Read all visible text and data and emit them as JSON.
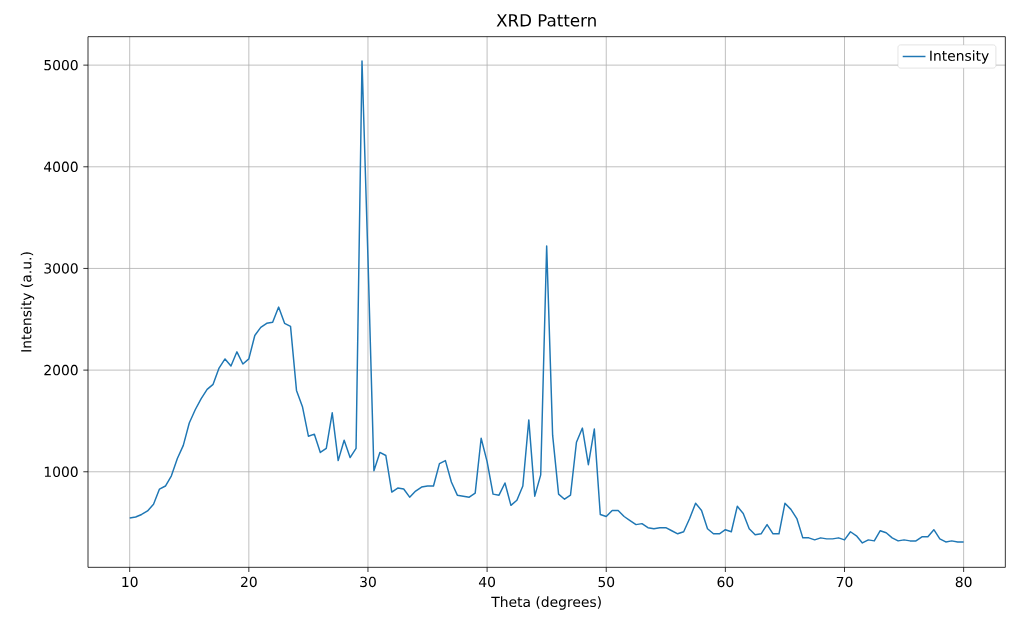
{
  "chart_data": {
    "type": "line",
    "title": "XRD Pattern",
    "xlabel": "Theta (degrees)",
    "ylabel": "Intensity (a.u.)",
    "x": [
      10,
      10.5,
      11,
      11.5,
      12,
      12.5,
      13,
      13.5,
      14,
      14.5,
      15,
      15.5,
      16,
      16.5,
      17,
      17.5,
      18,
      18.5,
      19,
      19.5,
      20,
      20.5,
      21,
      21.5,
      22,
      22.5,
      23,
      23.5,
      24,
      24.5,
      25,
      25.5,
      26,
      26.5,
      27,
      27.5,
      28,
      28.5,
      29,
      29.5,
      30,
      30.5,
      31,
      31.5,
      32,
      32.5,
      33,
      33.5,
      34,
      34.5,
      35,
      35.5,
      36,
      36.5,
      37,
      37.5,
      38,
      38.5,
      39,
      39.5,
      40,
      40.5,
      41,
      41.5,
      42,
      42.5,
      43,
      43.5,
      44,
      44.5,
      45,
      45.5,
      46,
      46.5,
      47,
      47.5,
      48,
      48.5,
      49,
      49.5,
      50,
      50.5,
      51,
      51.5,
      52,
      52.5,
      53,
      53.5,
      54,
      54.5,
      55,
      55.5,
      56,
      56.5,
      57,
      57.5,
      58,
      58.5,
      59,
      59.5,
      60,
      60.5,
      61,
      61.5,
      62,
      62.5,
      63,
      63.5,
      64,
      64.5,
      65,
      65.5,
      66,
      66.5,
      67,
      67.5,
      68,
      68.5,
      69,
      69.5,
      70,
      70.5,
      71,
      71.5,
      72,
      72.5,
      73,
      73.5,
      74,
      74.5,
      75,
      75.5,
      76,
      76.5,
      77,
      77.5,
      78,
      78.5,
      79,
      79.5,
      80
    ],
    "series": [
      {
        "name": "Intensity",
        "color": "#1f77b4",
        "values": [
          545,
          555,
          580,
          615,
          680,
          830,
          860,
          960,
          1130,
          1260,
          1480,
          1610,
          1720,
          1810,
          1860,
          2020,
          2110,
          2040,
          2180,
          2060,
          2110,
          2340,
          2420,
          2460,
          2470,
          2620,
          2460,
          2430,
          1800,
          1640,
          1350,
          1370,
          1190,
          1230,
          1580,
          1110,
          1310,
          1140,
          1230,
          5040,
          3100,
          1010,
          1190,
          1160,
          800,
          840,
          830,
          750,
          810,
          850,
          860,
          860,
          1080,
          1110,
          900,
          770,
          760,
          750,
          790,
          1330,
          1100,
          780,
          770,
          890,
          670,
          720,
          860,
          1510,
          760,
          970,
          3220,
          1360,
          780,
          730,
          770,
          1290,
          1430,
          1070,
          1420,
          580,
          560,
          620,
          620,
          560,
          520,
          480,
          490,
          450,
          440,
          450,
          450,
          420,
          390,
          410,
          540,
          690,
          620,
          440,
          390,
          390,
          430,
          410,
          660,
          590,
          440,
          380,
          390,
          480,
          390,
          390,
          690,
          630,
          540,
          350,
          350,
          330,
          350,
          340,
          340,
          350,
          330,
          410,
          370,
          300,
          330,
          320,
          420,
          400,
          350,
          320,
          330,
          320,
          320,
          360,
          360,
          430,
          340,
          310,
          320,
          310,
          310
        ]
      }
    ],
    "xlim": [
      6.5,
      83.5
    ],
    "ylim": [
      60,
      5280
    ],
    "xticks": [
      10,
      20,
      30,
      40,
      50,
      60,
      70,
      80
    ],
    "yticks": [
      1000,
      2000,
      3000,
      4000,
      5000
    ],
    "grid": true,
    "legend": "top right"
  }
}
